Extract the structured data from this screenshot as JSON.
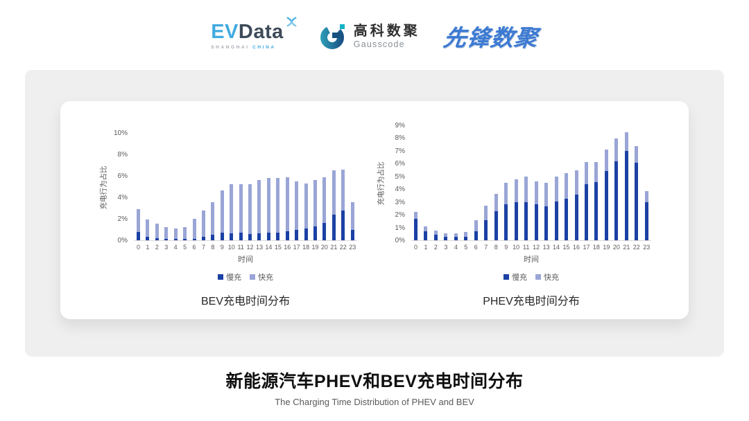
{
  "header": {
    "evdata": {
      "ev": "EV",
      "data": "Data",
      "sub_left": "SHANGHAI",
      "sub_right": "CHINA"
    },
    "gausscode": {
      "cn": "高科数聚",
      "en": "Gausscode"
    },
    "xianfeng": {
      "text": "先锋数聚"
    }
  },
  "icons": {
    "evdata_mark": "pinwheel-x",
    "gausscode_mark": "g-ring-with-square"
  },
  "colors": {
    "slow_fill": "#1b41a4",
    "fast_fill": "#9aa5d6",
    "evdata_blue": "#41abdf",
    "evdata_dark": "#3d4a58",
    "gauss_teal": "#12b2c6",
    "xianfeng_blue": "#3c7ad2",
    "panel_gray": "#efefef",
    "axis_text": "#595959"
  },
  "footer": {
    "title": "新能源汽车PHEV和BEV充电时间分布",
    "subtitle": "The Charging Time Distribution of PHEV and BEV"
  },
  "chart_data": [
    {
      "type": "bar",
      "stacked": true,
      "title": "BEV充电时间分布",
      "xlabel": "时间",
      "ylabel": "充电行为占比",
      "ylim": [
        0,
        10
      ],
      "ytick_step": 2,
      "ytick_suffix": "%",
      "grid": false,
      "legend_position": "bottom",
      "categories": [
        "0",
        "1",
        "2",
        "3",
        "4",
        "5",
        "6",
        "7",
        "8",
        "9",
        "10",
        "11",
        "12",
        "13",
        "14",
        "15",
        "16",
        "17",
        "18",
        "19",
        "20",
        "21",
        "22",
        "23"
      ],
      "series": [
        {
          "name": "慢充",
          "color": "#1b41a4",
          "values": [
            0.8,
            0.35,
            0.2,
            0.15,
            0.1,
            0.1,
            0.15,
            0.35,
            0.5,
            0.7,
            0.65,
            0.7,
            0.6,
            0.65,
            0.7,
            0.7,
            0.85,
            1.0,
            1.1,
            1.3,
            1.6,
            2.4,
            2.75,
            0.95
          ]
        },
        {
          "name": "快充",
          "color": "#9aa5d6",
          "values": [
            2.1,
            1.6,
            1.35,
            1.05,
            1.0,
            1.1,
            1.85,
            2.45,
            3.05,
            3.95,
            4.55,
            4.5,
            4.6,
            4.95,
            5.1,
            5.1,
            5.0,
            4.5,
            4.2,
            4.3,
            4.3,
            4.1,
            3.85,
            2.6
          ]
        }
      ]
    },
    {
      "type": "bar",
      "stacked": true,
      "title": "PHEV充电时间分布",
      "xlabel": "时间",
      "ylabel": "充电行为占比",
      "ylim": [
        0,
        9
      ],
      "ytick_step": 1,
      "ytick_suffix": "%",
      "grid": false,
      "legend_position": "bottom",
      "categories": [
        "0",
        "1",
        "2",
        "3",
        "4",
        "5",
        "6",
        "7",
        "8",
        "9",
        "10",
        "11",
        "12",
        "13",
        "14",
        "15",
        "16",
        "17",
        "18",
        "19",
        "20",
        "21",
        "22",
        "23"
      ],
      "series": [
        {
          "name": "慢充",
          "color": "#1b41a4",
          "values": [
            1.7,
            0.7,
            0.45,
            0.3,
            0.25,
            0.3,
            0.7,
            1.6,
            2.3,
            2.8,
            3.0,
            3.0,
            2.8,
            2.65,
            3.05,
            3.25,
            3.6,
            4.4,
            4.55,
            5.4,
            6.2,
            7.0,
            6.1,
            3.0
          ]
        },
        {
          "name": "快充",
          "color": "#9aa5d6",
          "values": [
            0.5,
            0.4,
            0.3,
            0.25,
            0.3,
            0.35,
            0.9,
            1.1,
            1.35,
            1.7,
            1.8,
            2.0,
            1.8,
            1.85,
            1.95,
            2.0,
            1.9,
            1.75,
            1.6,
            1.7,
            1.75,
            1.45,
            1.3,
            0.85
          ]
        }
      ]
    }
  ]
}
